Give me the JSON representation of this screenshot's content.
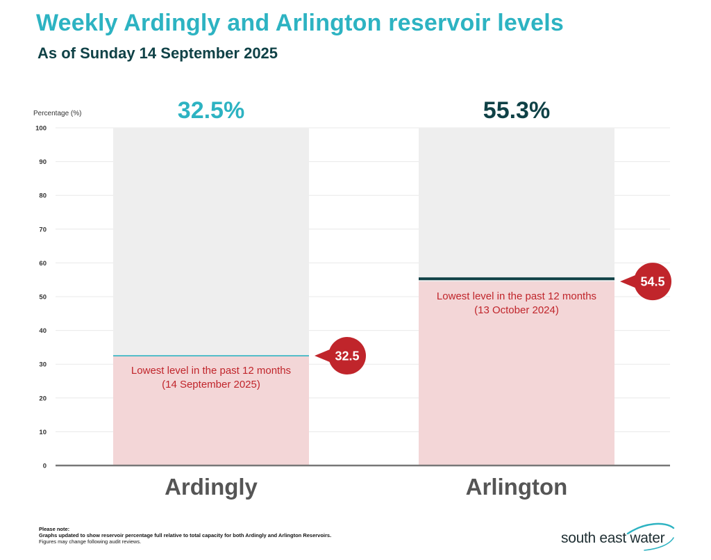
{
  "header": {
    "title": "Weekly Ardingly and Arlington reservoir levels",
    "subtitle": "As of Sunday 14 September 2025"
  },
  "chart_data": {
    "type": "bar",
    "ylabel": "Percentage (%)",
    "ylim": [
      0,
      100
    ],
    "yticks": [
      0,
      10,
      20,
      30,
      40,
      50,
      60,
      70,
      80,
      90,
      100
    ],
    "grid": true,
    "categories": [
      "Ardingly",
      "Arlington"
    ],
    "values": [
      32.5,
      55.3
    ],
    "value_labels": [
      "32.5%",
      "55.3%"
    ],
    "value_label_colors": [
      "#2db3c2",
      "#0f4146"
    ],
    "level_line_colors": [
      "#2db3c2",
      "#0f4146"
    ],
    "lowest_level": {
      "values": [
        32.5,
        54.5
      ],
      "labels": [
        "32.5",
        "54.5"
      ],
      "annotation_lines": [
        [
          "Lowest level in the past 12 months",
          "(14 September 2025)"
        ],
        [
          "Lowest level in the past 12 months",
          "(13 October 2024)"
        ]
      ]
    }
  },
  "colors": {
    "title": "#2db3c2",
    "subtitle": "#0f4146",
    "capacity_fill": "#eeeeee",
    "lowest_fill": "#f3d6d7",
    "marker": "#c0252b",
    "annotation_text": "#c0252b",
    "category_label": "#555555",
    "grid": "#e8e8e8",
    "axis": "#777777"
  },
  "notes": {
    "title": "Please note:",
    "line1": "Graphs updated to show reservoir percentage full relative to total capacity for both Ardingly and Arlington Reservoirs.",
    "line2": "Figures may change following audit reviews."
  },
  "logo": {
    "text": "south east water",
    "icon": "wave-swoosh-icon"
  }
}
